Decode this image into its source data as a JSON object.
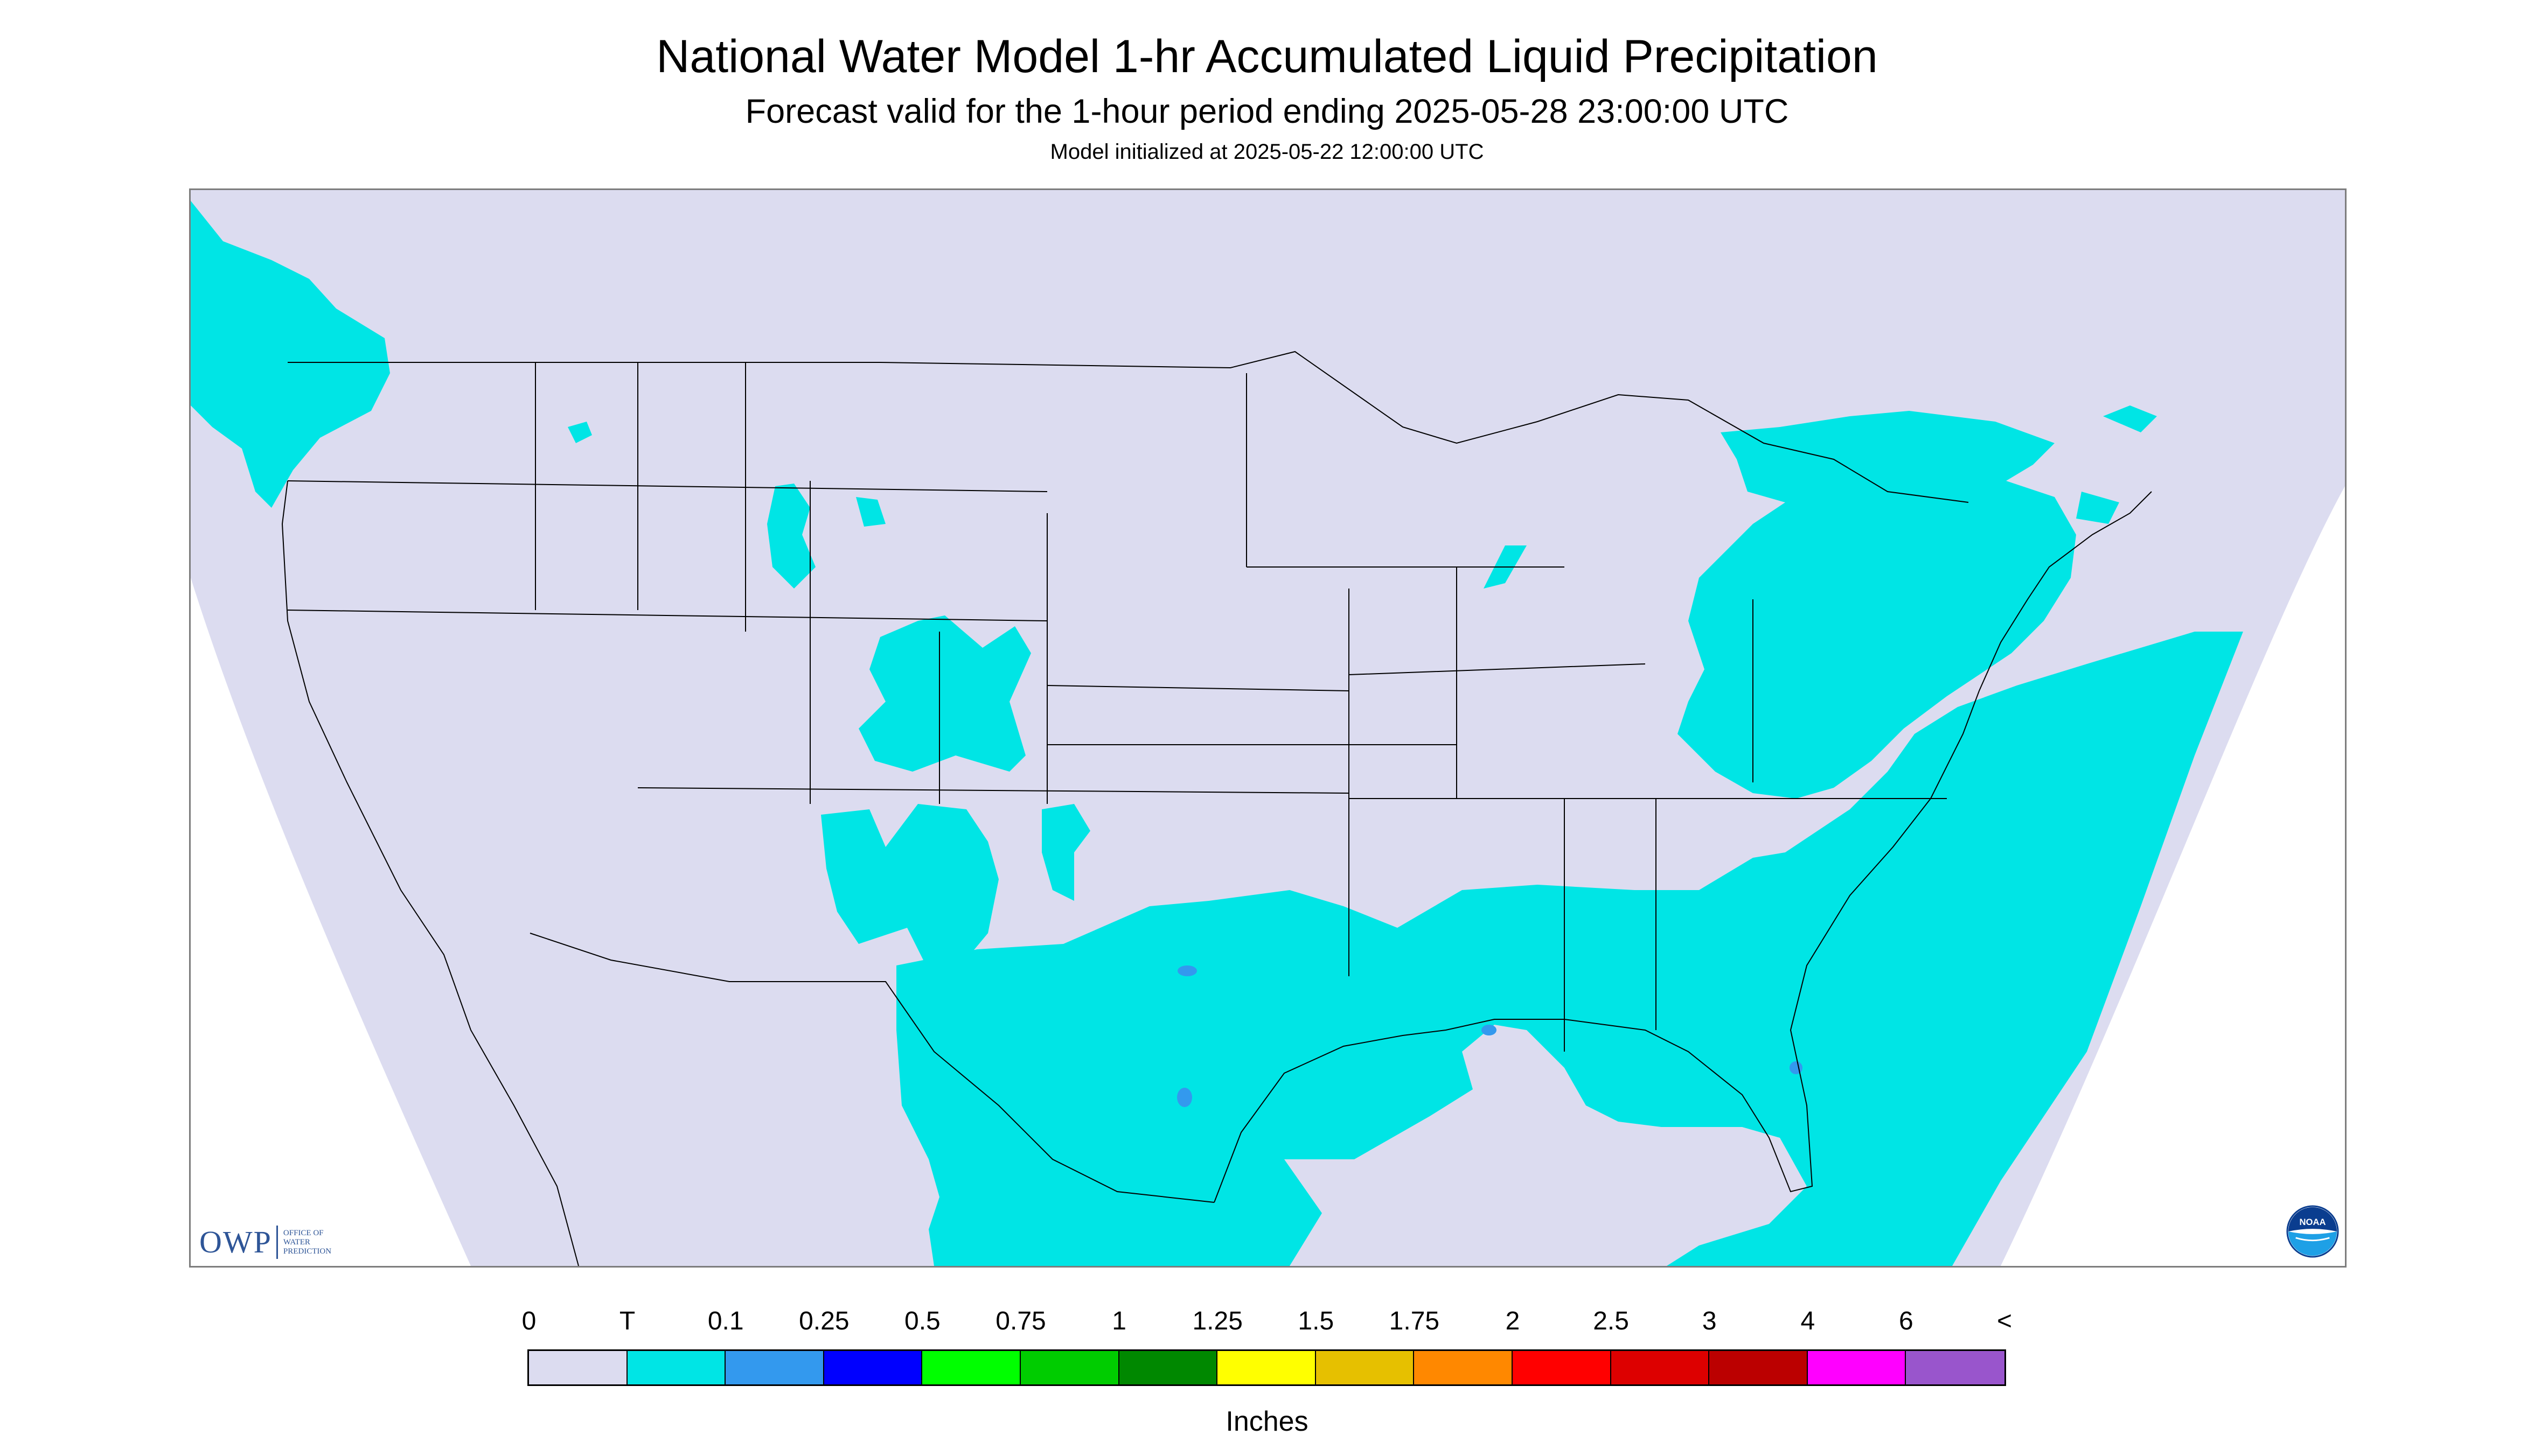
{
  "title": "National Water Model 1-hr Accumulated Liquid Precipitation",
  "subtitle": "Forecast valid for the 1-hour period ending 2025-05-28 23:00:00 UTC",
  "init_line": "Model initialized at 2025-05-22 12:00:00 UTC",
  "map": {
    "background_color": "#dcdcf0",
    "outside_domain_color": "#ffffff",
    "boundary_color": "#000000",
    "precip_color_trace": "#00e5e5",
    "precip_color_0_1": "#3399ee",
    "regions_with_precip": [
      "Pacific Northwest",
      "Great Lakes",
      "Northeast",
      "Mid-Atlantic",
      "Southeast",
      "Gulf Coast",
      "Texas",
      "Colorado",
      "New Mexico",
      "Gulf of Mexico",
      "Western Atlantic"
    ]
  },
  "owp_logo": {
    "mark": "OWP",
    "text": "OFFICE OF\nWATER\nPREDICTION",
    "color": "#2e5597"
  },
  "noaa_logo": {
    "mark": "NOAA"
  },
  "legend": {
    "labels": [
      "0",
      "T",
      "0.1",
      "0.25",
      "0.5",
      "0.75",
      "1",
      "1.25",
      "1.5",
      "1.75",
      "2",
      "2.5",
      "3",
      "4",
      "6",
      "<"
    ],
    "colors": [
      "#dcdcf0",
      "#00e5e5",
      "#3399ee",
      "#0000ff",
      "#00ff00",
      "#00cc00",
      "#008800",
      "#ffff00",
      "#e6c000",
      "#ff8800",
      "#ff0000",
      "#dd0000",
      "#bb0000",
      "#ff00ff",
      "#9955cc"
    ],
    "unit": "Inches"
  }
}
